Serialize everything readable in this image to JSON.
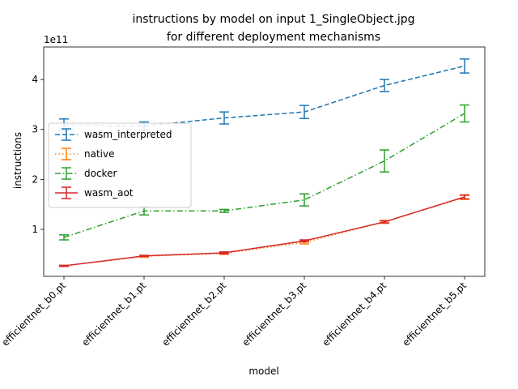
{
  "chart_data": {
    "type": "line",
    "title": "instructions by model on input 1_SingleObject.jpg",
    "subtitle": "for different deployment mechanisms",
    "xlabel": "model",
    "ylabel": "instructions",
    "y_offset_label": "1e11",
    "categories": [
      "efficientnet_b0.pt",
      "efficientnet_b1.pt",
      "efficientnet_b2.pt",
      "efficientnet_b3.pt",
      "efficientnet_b4.pt",
      "efficientnet_b5.pt"
    ],
    "yticks": [
      1,
      2,
      3,
      4
    ],
    "ytick_labels": [
      "1",
      "2",
      "3",
      "4"
    ],
    "ylim": [
      0.06,
      4.65
    ],
    "grid": false,
    "legend_position": "center-left",
    "series": [
      {
        "name": "wasm_interpreted",
        "color": "#1f77b4",
        "linestyle": "dashed",
        "values": [
          3.09,
          3.07,
          3.23,
          3.35,
          3.88,
          4.27
        ],
        "errors": [
          0.12,
          0.08,
          0.12,
          0.13,
          0.12,
          0.14
        ]
      },
      {
        "name": "native",
        "color": "#ff7f0e",
        "linestyle": "dotted",
        "values": [
          0.27,
          0.46,
          0.52,
          0.74,
          1.15,
          1.64
        ],
        "errors": [
          0.01,
          0.02,
          0.02,
          0.03,
          0.03,
          0.04
        ]
      },
      {
        "name": "docker",
        "color": "#2ca02c",
        "linestyle": "dashdot",
        "values": [
          0.84,
          1.37,
          1.37,
          1.59,
          2.37,
          3.32
        ],
        "errors": [
          0.05,
          0.08,
          0.03,
          0.12,
          0.22,
          0.17
        ]
      },
      {
        "name": "wasm_aot",
        "color": "#d62728",
        "linestyle": "solid",
        "values": [
          0.27,
          0.47,
          0.53,
          0.77,
          1.15,
          1.65
        ],
        "errors": [
          0.01,
          0.01,
          0.02,
          0.02,
          0.02,
          0.04
        ]
      }
    ]
  }
}
